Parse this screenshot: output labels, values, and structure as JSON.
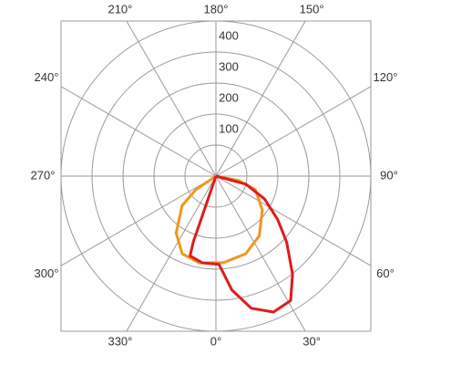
{
  "chart_data": {
    "type": "polar",
    "rlim": [
      0,
      500
    ],
    "rticks": [
      100,
      200,
      300,
      400
    ],
    "thetaticks": [
      {
        "value": 0,
        "label": "0°"
      },
      {
        "value": 30,
        "label": "30°"
      },
      {
        "value": 60,
        "label": "60°"
      },
      {
        "value": 90,
        "label": "90°"
      },
      {
        "value": 120,
        "label": "120°"
      },
      {
        "value": 150,
        "label": "150°"
      },
      {
        "value": 180,
        "label": "180°"
      },
      {
        "value": 210,
        "label": "210°"
      },
      {
        "value": 240,
        "label": "240°"
      },
      {
        "value": 270,
        "label": "270°"
      },
      {
        "value": 300,
        "label": "300°"
      },
      {
        "value": 330,
        "label": "330°"
      }
    ],
    "grid": true,
    "series": [
      {
        "color": "#f0961e",
        "theta": [
          300,
          304,
          311,
          325,
          336.5,
          349,
          365,
          381,
          396,
          414,
          431,
          439,
          450
        ],
        "values": [
          0,
          78,
          144,
          224,
          273,
          285,
          280,
          268,
          238,
          185,
          134,
          75,
          0
        ]
      },
      {
        "color": "#e01b1b",
        "theta": [
          330,
          341,
          342,
          351,
          362,
          368,
          375,
          383,
          391,
          398,
          407,
          415,
          425,
          435,
          450
        ],
        "values": [
          0,
          224,
          270,
          283,
          285,
          371,
          441,
          476,
          468,
          402,
          312,
          243,
          173,
          100,
          0
        ]
      }
    ]
  }
}
